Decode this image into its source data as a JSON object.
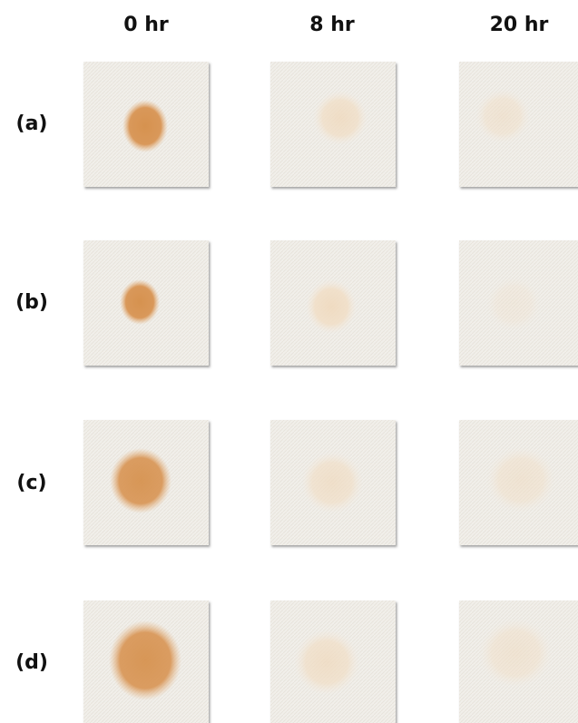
{
  "columns": [
    "0 hr",
    "8 hr",
    "20 hr"
  ],
  "rows": [
    "(a)",
    "(b)",
    "(c)",
    "(d)"
  ]
}
